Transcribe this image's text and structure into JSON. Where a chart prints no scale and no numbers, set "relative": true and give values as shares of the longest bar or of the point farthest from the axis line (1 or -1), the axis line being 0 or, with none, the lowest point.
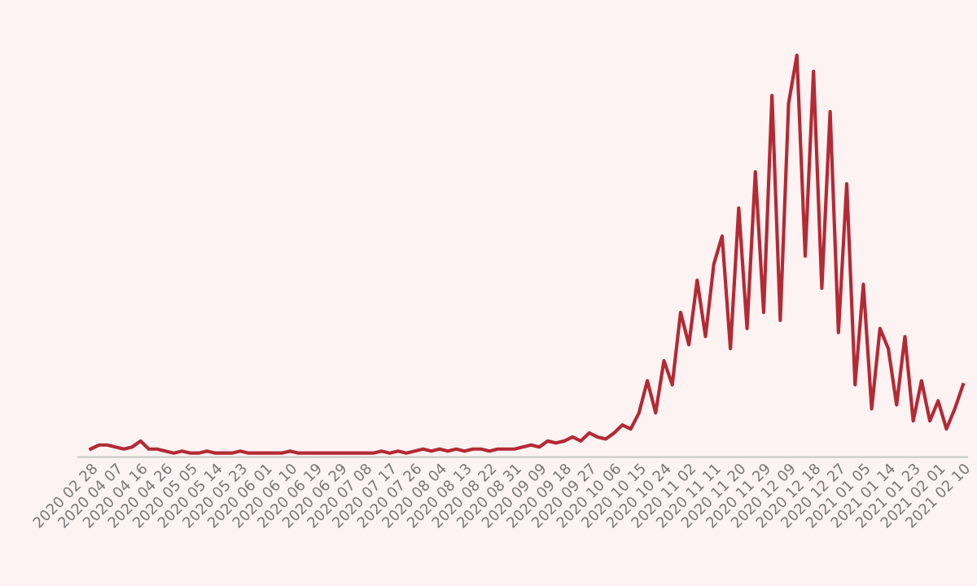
{
  "chart_data": {
    "type": "line",
    "relative": true,
    "color": "#b32a35",
    "categories": [
      "2020 02 28",
      null,
      null,
      "2020 04 07",
      null,
      null,
      "2020 04 16",
      null,
      null,
      "2020 04 26",
      null,
      null,
      "2020 05 05",
      null,
      null,
      "2020 05 14",
      null,
      null,
      "2020 05 23",
      null,
      null,
      "2020 06 01",
      null,
      null,
      "2020 06 10",
      null,
      null,
      "2020 06 19",
      null,
      null,
      "2020 06 29",
      null,
      null,
      "2020 07 08",
      null,
      null,
      "2020 07 17",
      null,
      null,
      "2020 07 26",
      null,
      null,
      "2020 08 04",
      null,
      null,
      "2020 08 13",
      null,
      null,
      "2020 08 22",
      null,
      null,
      "2020 08 31",
      null,
      null,
      "2020 09 09",
      null,
      null,
      "2020 09 18",
      null,
      null,
      "2020 09 27",
      null,
      null,
      "2020 10 06",
      null,
      null,
      "2020 10 15",
      null,
      null,
      "2020 10 24",
      null,
      null,
      "2020 11 02",
      null,
      null,
      "2020 11 11",
      null,
      null,
      "2020 11 20",
      null,
      null,
      "2020 11 29",
      null,
      null,
      "2020 12 09",
      null,
      null,
      "2020 12 18",
      null,
      null,
      "2020 12 27",
      null,
      null,
      "2021 01 05",
      null,
      null,
      "2021 01 14",
      null,
      null,
      "2021 01 23",
      null,
      null,
      "2021 02 01",
      null,
      null,
      "2021 02 10"
    ],
    "values": [
      0.02,
      0.03,
      0.03,
      0.025,
      0.02,
      0.025,
      0.04,
      0.02,
      0.02,
      0.015,
      0.01,
      0.015,
      0.01,
      0.01,
      0.015,
      0.01,
      0.01,
      0.01,
      0.015,
      0.01,
      0.01,
      0.01,
      0.01,
      0.01,
      0.015,
      0.01,
      0.01,
      0.01,
      0.01,
      0.01,
      0.01,
      0.01,
      0.01,
      0.01,
      0.01,
      0.015,
      0.01,
      0.015,
      0.01,
      0.015,
      0.02,
      0.015,
      0.02,
      0.015,
      0.02,
      0.015,
      0.02,
      0.02,
      0.015,
      0.02,
      0.02,
      0.02,
      0.025,
      0.03,
      0.025,
      0.04,
      0.035,
      0.04,
      0.05,
      0.04,
      0.06,
      0.05,
      0.045,
      0.06,
      0.08,
      0.07,
      0.11,
      0.19,
      0.11,
      0.24,
      0.18,
      0.36,
      0.28,
      0.44,
      0.3,
      0.48,
      0.55,
      0.27,
      0.62,
      0.32,
      0.71,
      0.36,
      0.9,
      0.34,
      0.88,
      1.0,
      0.5,
      0.96,
      0.42,
      0.86,
      0.31,
      0.68,
      0.18,
      0.43,
      0.12,
      0.32,
      0.27,
      0.13,
      0.3,
      0.09,
      0.19,
      0.09,
      0.14,
      0.07,
      0.12,
      0.18
    ]
  }
}
